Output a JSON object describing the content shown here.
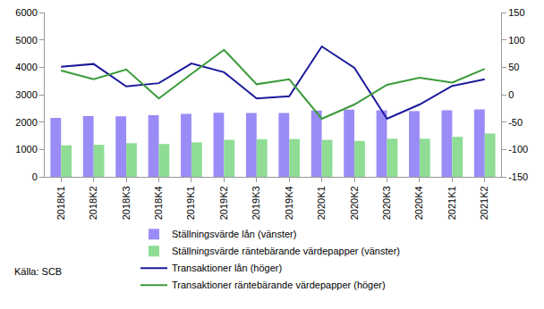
{
  "chart_data": {
    "type": "bar",
    "categories": [
      "2018K1",
      "2018K2",
      "2018K3",
      "2018K4",
      "2019K1",
      "2019K2",
      "2019K3",
      "2019K4",
      "2020K1",
      "2020K2",
      "2020K3",
      "2020K4",
      "2021K1",
      "2021K2"
    ],
    "series": [
      {
        "name": "Ställningsvärde lån (vänster)",
        "type": "bar",
        "color": "#9a8cf7",
        "values": [
          2150,
          2220,
          2210,
          2250,
          2300,
          2340,
          2330,
          2330,
          2420,
          2450,
          2430,
          2400,
          2430,
          2460
        ]
      },
      {
        "name": "Ställningsvärde räntebärande värdepapper (vänster)",
        "type": "bar",
        "color": "#8fdc95",
        "values": [
          1150,
          1170,
          1230,
          1200,
          1260,
          1350,
          1370,
          1380,
          1350,
          1310,
          1390,
          1390,
          1460,
          1580
        ]
      },
      {
        "name": "Transaktioner lån (höger)",
        "type": "line",
        "axis": "y2",
        "color": "#1a1a9c",
        "values": [
          51,
          56,
          15,
          21,
          57,
          41,
          -7,
          -3,
          88,
          49,
          -44,
          -18,
          16,
          28
        ]
      },
      {
        "name": "Transaktioner räntebärande värdepapper (höger)",
        "type": "line",
        "axis": "y2",
        "color": "#3a9a3a",
        "values": [
          44,
          28,
          46,
          -7,
          38,
          82,
          19,
          28,
          -44,
          -18,
          18,
          31,
          22,
          47
        ]
      }
    ],
    "ylim": [
      0,
      6000
    ],
    "yticks": [
      0,
      1000,
      2000,
      3000,
      4000,
      5000,
      6000
    ],
    "y2lim": [
      -150,
      150
    ],
    "y2ticks": [
      -150,
      -100,
      -50,
      0,
      50,
      100,
      150
    ],
    "grid": false,
    "legend": "bottom",
    "annotations": [
      "Källa: SCB"
    ]
  }
}
